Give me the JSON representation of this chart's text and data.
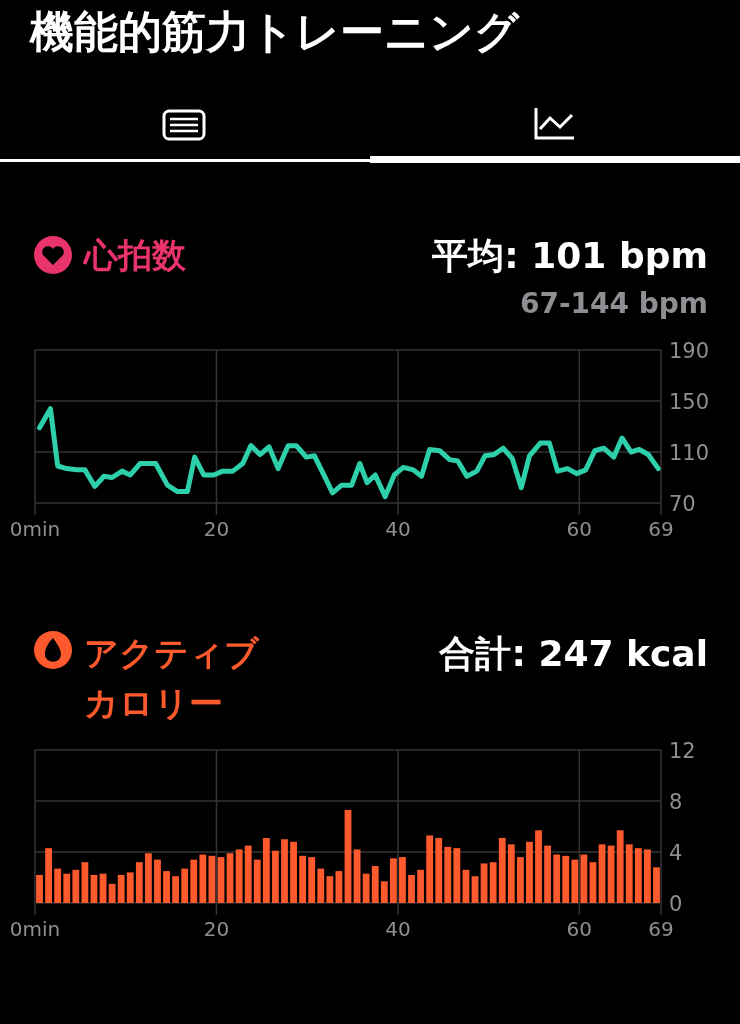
{
  "chart_data": [
    {
      "type": "line",
      "title": "心拍数",
      "annotations": [
        "機能的筋力トレーニング",
        "平均: 101 bpm",
        "67-144 bpm"
      ],
      "xlim": [
        0,
        69
      ],
      "xticks": [
        {
          "value": 0,
          "label": "0min"
        },
        20,
        40,
        60,
        69
      ],
      "ylim": [
        70,
        190
      ],
      "yticks": [
        70,
        110,
        150,
        190
      ],
      "grid": true,
      "marker": "none",
      "line_style": "solid",
      "series": [
        {
          "color": "#2ecfab",
          "x": [
            0.5,
            1.7,
            2.5,
            3.5,
            4.6,
            5.5,
            6.6,
            7.6,
            8.5,
            9.6,
            10.5,
            11.6,
            13.3,
            14.6,
            15.7,
            16.8,
            17.6,
            18.6,
            19.7,
            20.7,
            21.8,
            22.9,
            23.8,
            24.8,
            25.8,
            26.8,
            27.9,
            28.8,
            29.9,
            30.8,
            31.7,
            32.8,
            33.8,
            34.9,
            35.8,
            36.6,
            37.5,
            38.6,
            39.6,
            40.6,
            41.7,
            42.6,
            43.5,
            44.6,
            45.7,
            46.6,
            47.6,
            48.7,
            49.6,
            50.6,
            51.6,
            52.6,
            53.6,
            54.5,
            55.7,
            56.7,
            57.6,
            58.7,
            59.7,
            60.7,
            61.7,
            62.7,
            63.8,
            64.7,
            65.7,
            66.6,
            67.6,
            68.7
          ],
          "values": [
            129,
            144,
            99,
            97,
            96,
            96,
            83,
            91,
            90,
            95,
            92,
            101,
            101,
            84,
            79,
            79,
            106,
            92,
            92,
            95,
            95,
            101,
            115,
            108,
            114,
            97,
            115,
            115,
            106,
            107,
            94,
            78,
            84,
            84,
            101,
            86,
            92,
            75,
            92,
            98,
            96,
            91,
            112,
            111,
            104,
            103,
            91,
            95,
            107,
            108,
            113,
            105,
            82,
            107,
            117,
            117,
            95,
            97,
            93,
            96,
            111,
            113,
            106,
            121,
            110,
            112,
            108,
            97
          ]
        }
      ]
    },
    {
      "type": "bar",
      "title": "アクティブカロリー",
      "annotations": [
        "合計: 247 kcal"
      ],
      "xlim": [
        0,
        69
      ],
      "xticks": [
        {
          "value": 0,
          "label": "0min"
        },
        20,
        40,
        60,
        69
      ],
      "ylim": [
        0,
        12
      ],
      "yticks": [
        0,
        4,
        8,
        12
      ],
      "grid": true,
      "series": [
        {
          "color": "#ff5a2d",
          "x": [
            0.5,
            1.5,
            2.5,
            3.5,
            4.5,
            5.5,
            6.5,
            7.5,
            8.5,
            9.5,
            10.5,
            11.5,
            12.5,
            13.5,
            14.5,
            15.5,
            16.5,
            17.5,
            18.5,
            19.5,
            20.5,
            21.5,
            22.5,
            23.5,
            24.5,
            25.5,
            26.5,
            27.5,
            28.5,
            29.5,
            30.5,
            31.5,
            32.5,
            33.5,
            34.5,
            35.5,
            36.5,
            37.5,
            38.5,
            39.5,
            40.5,
            41.5,
            42.5,
            43.5,
            44.5,
            45.5,
            46.5,
            47.5,
            48.5,
            49.5,
            50.5,
            51.5,
            52.5,
            53.5,
            54.5,
            55.5,
            56.5,
            57.5,
            58.5,
            59.5,
            60.5,
            61.5,
            62.5,
            63.5,
            64.5,
            65.5,
            66.5,
            67.5,
            68.5
          ],
          "values": [
            2.2,
            4.3,
            2.7,
            2.3,
            2.6,
            3.2,
            2.2,
            2.3,
            1.5,
            2.2,
            2.4,
            3.2,
            3.9,
            3.4,
            2.5,
            2.1,
            2.7,
            3.4,
            3.8,
            3.7,
            3.6,
            3.9,
            4.2,
            4.5,
            3.4,
            5.1,
            4.1,
            5.0,
            4.8,
            3.7,
            3.6,
            2.7,
            2.1,
            2.5,
            7.3,
            4.2,
            2.3,
            2.9,
            1.7,
            3.5,
            3.6,
            2.2,
            2.6,
            5.3,
            5.1,
            4.4,
            4.3,
            2.6,
            2.1,
            3.1,
            3.2,
            5.1,
            4.6,
            3.6,
            4.8,
            5.7,
            4.5,
            3.8,
            3.7,
            3.4,
            3.8,
            3.2,
            4.6,
            4.5,
            5.7,
            4.6,
            4.3,
            4.2,
            2.8
          ]
        }
      ]
    }
  ]
}
